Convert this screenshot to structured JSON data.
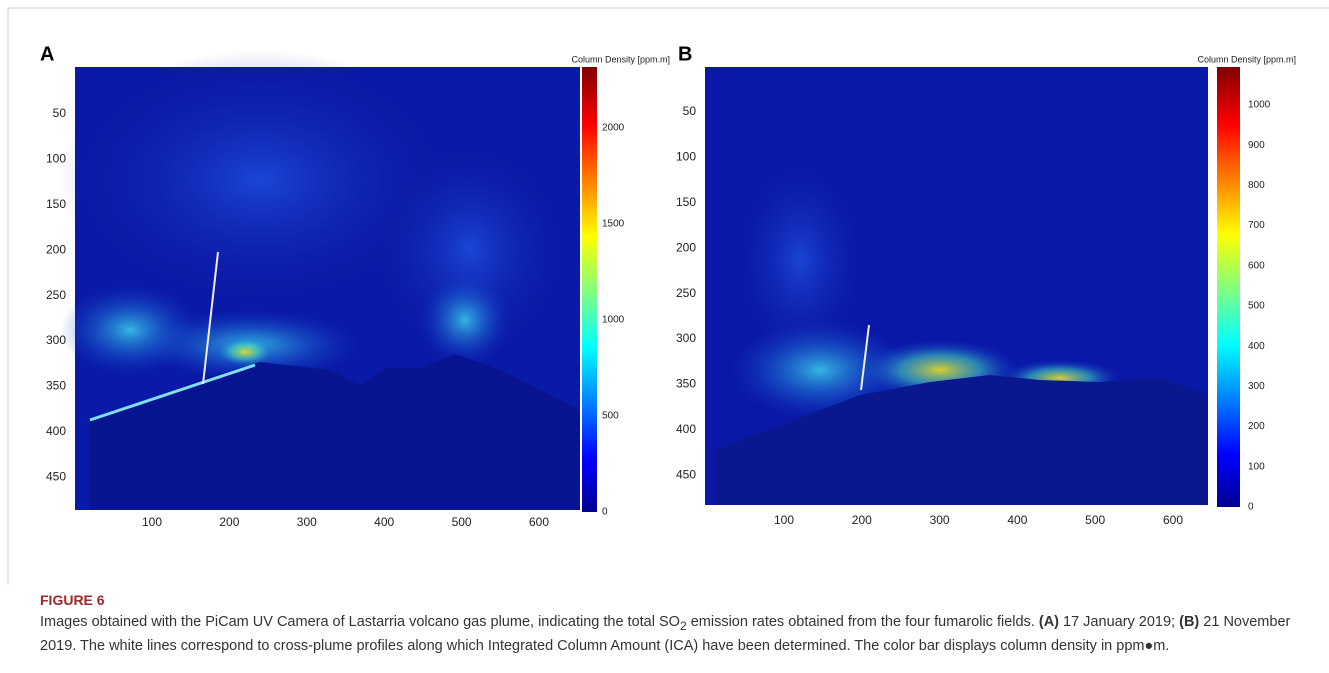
{
  "figure": {
    "panels": [
      {
        "label": "A",
        "colorbar_title": "Column Density [ppm.m]",
        "yticks": [
          50,
          100,
          150,
          200,
          250,
          300,
          350,
          400,
          450
        ],
        "xticks": [
          100,
          200,
          300,
          400,
          500,
          600
        ],
        "colorbar_ticks": [
          0,
          500,
          1000,
          1500,
          2000
        ]
      },
      {
        "label": "B",
        "colorbar_title": "Column Density [ppm.m]",
        "yticks": [
          50,
          100,
          150,
          200,
          250,
          300,
          350,
          400,
          450
        ],
        "xticks": [
          100,
          200,
          300,
          400,
          500,
          600
        ],
        "colorbar_ticks": [
          0,
          100,
          200,
          300,
          400,
          500,
          600,
          700,
          800,
          900,
          1000
        ]
      }
    ],
    "figure_label": "FIGURE 6",
    "caption": [
      "Images obtained with the PiCam UV Camera of Lastarria volcano gas plume, indicating the total SO",
      "2",
      " emission rates obtained from the four fumarolic fields. ",
      "(A)",
      " 17 January 2019; ",
      "(B)",
      " 21 November 2019. The white lines correspond to cross-plume profiles along which Integrated Column Amount (ICA) have been determined. The color bar displays column density in ppm●m."
    ]
  }
}
